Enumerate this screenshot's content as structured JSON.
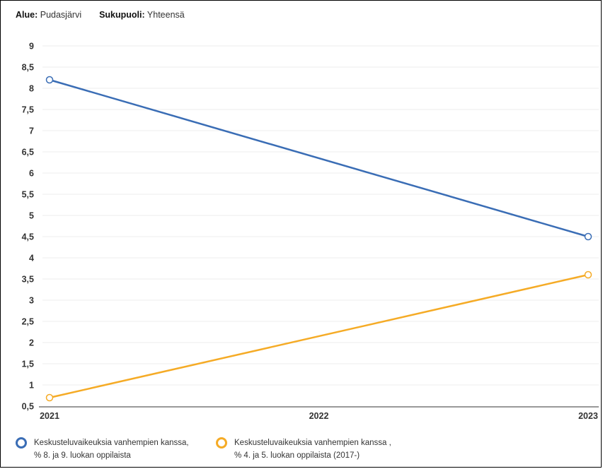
{
  "filters": {
    "region_label": "Alue:",
    "region_value": "Pudasjärvi",
    "gender_label": "Sukupuoli:",
    "gender_value": "Yhteensä"
  },
  "colors": {
    "series_blue": "#3a6db5",
    "series_orange": "#f5ab26",
    "grid": "#ececec",
    "axis": "#999999"
  },
  "chart_data": {
    "type": "line",
    "x": [
      "2021",
      "2022",
      "2023"
    ],
    "ylim": [
      0.5,
      9
    ],
    "y_ticks": [
      "0,5",
      "1",
      "1,5",
      "2",
      "2,5",
      "3",
      "3,5",
      "4",
      "4,5",
      "5",
      "5,5",
      "6",
      "6,5",
      "7",
      "7,5",
      "8",
      "8,5",
      "9"
    ],
    "grid": true,
    "legend_position": "bottom",
    "series": [
      {
        "name": "Keskusteluvaikeuksia vanhempien kanssa, % 8. ja 9. luokan oppilaista",
        "color": "#3a6db5",
        "points": [
          {
            "x": "2021",
            "y": 8.2
          },
          {
            "x": "2023",
            "y": 4.5
          }
        ]
      },
      {
        "name": "Keskusteluvaikeuksia vanhempien kanssa , % 4. ja 5. luokan oppilaista (2017-)",
        "color": "#f5ab26",
        "points": [
          {
            "x": "2021",
            "y": 0.7
          },
          {
            "x": "2023",
            "y": 3.6
          }
        ]
      }
    ]
  }
}
